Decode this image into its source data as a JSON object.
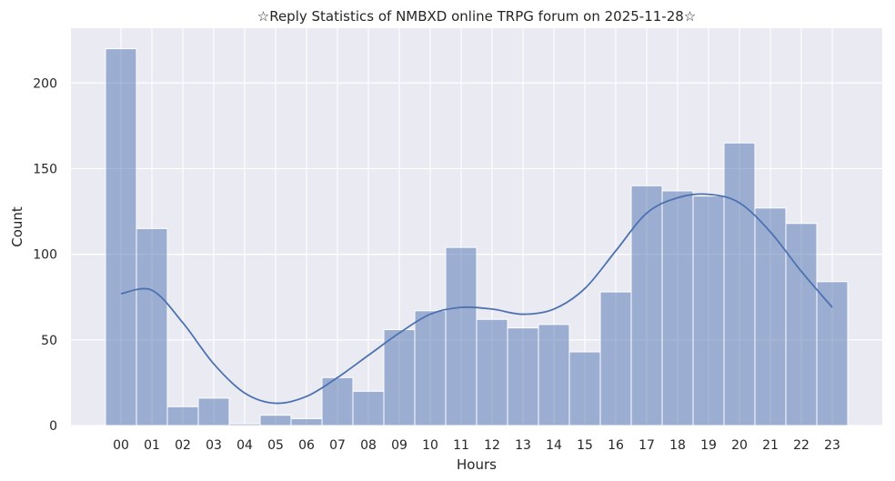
{
  "chart_data": {
    "type": "bar",
    "title": "☆Reply Statistics of NMBXD online TRPG forum on 2025-11-28☆",
    "xlabel": "Hours",
    "ylabel": "Count",
    "categories": [
      "00",
      "01",
      "02",
      "03",
      "04",
      "05",
      "06",
      "07",
      "08",
      "09",
      "10",
      "11",
      "12",
      "13",
      "14",
      "15",
      "16",
      "17",
      "18",
      "19",
      "20",
      "21",
      "22",
      "23"
    ],
    "values": [
      220,
      115,
      11,
      16,
      1,
      6,
      4,
      28,
      20,
      56,
      67,
      104,
      62,
      57,
      59,
      43,
      78,
      140,
      137,
      134,
      165,
      127,
      118,
      84
    ],
    "kde_curve": [
      77,
      79,
      60,
      36,
      19,
      13,
      17,
      28,
      41,
      54,
      65,
      69,
      68,
      65,
      68,
      80,
      102,
      124,
      133,
      135,
      130,
      113,
      90,
      69
    ],
    "ylim": [
      0,
      232
    ],
    "yticks": [
      0,
      50,
      100,
      150,
      200
    ],
    "grid": true,
    "legend": "none",
    "colors": {
      "bar_fill": "#4c72b0",
      "bar_opacity": 0.5,
      "curve": "#4c72b0",
      "plot_background": "#eaeaf2",
      "grid": "#ffffff"
    }
  }
}
